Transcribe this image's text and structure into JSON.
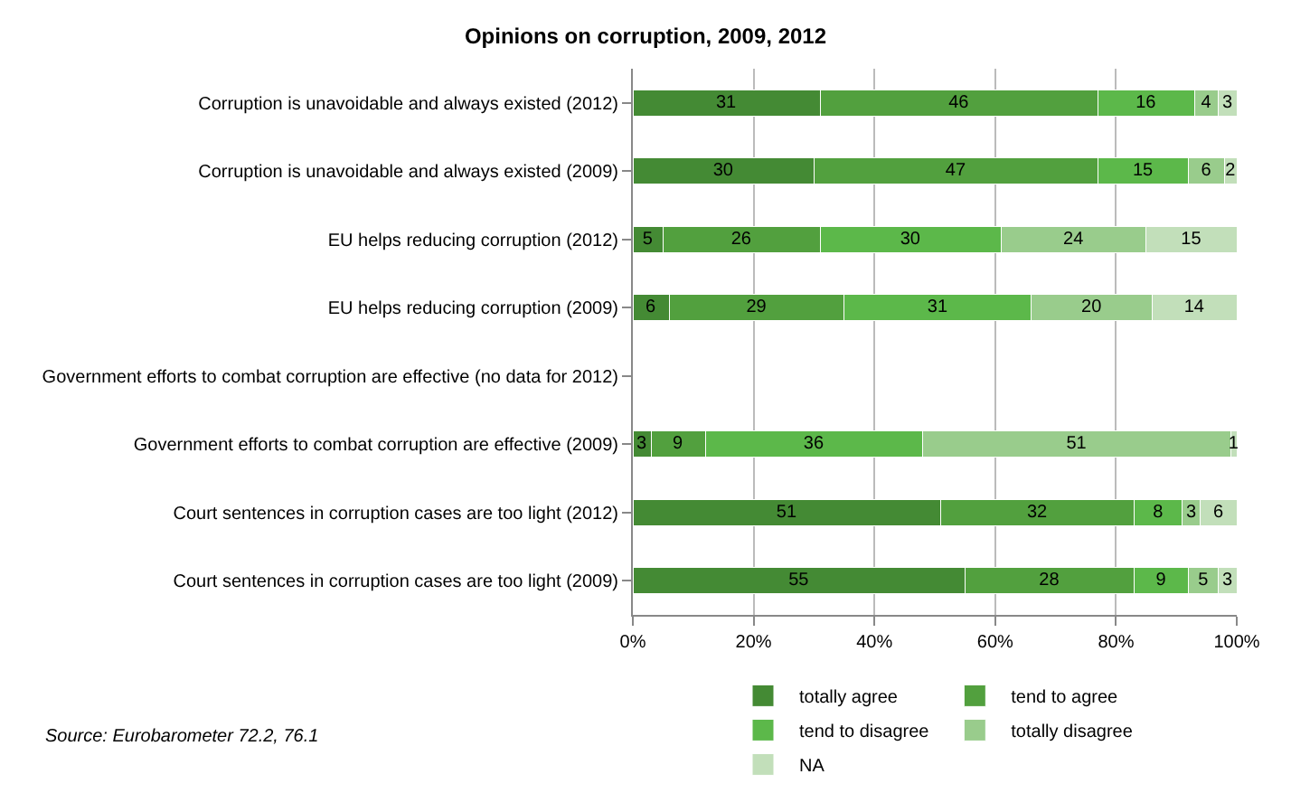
{
  "chart_data": {
    "type": "bar",
    "orientation": "horizontal",
    "stacked": true,
    "title": "Opinions on corruption, 2009, 2012",
    "categories": [
      "Corruption is unavoidable and always existed (2012)",
      "Corruption is unavoidable and always existed (2009)",
      "EU helps reducing corruption (2012)",
      "EU helps reducing corruption (2009)",
      "Government efforts to combat corruption are effective (no data for 2012)",
      "Government efforts to combat corruption are effective (2009)",
      "Court sentences in corruption cases are too light (2012)",
      "Court sentences in corruption cases are too light (2009)"
    ],
    "series": [
      {
        "name": "totally agree",
        "color": "#448a34",
        "values": [
          31,
          30,
          5,
          6,
          null,
          3,
          51,
          55
        ]
      },
      {
        "name": "tend to agree",
        "color": "#52a03e",
        "values": [
          46,
          47,
          26,
          29,
          null,
          9,
          32,
          28
        ]
      },
      {
        "name": "tend to disagree",
        "color": "#5cb84a",
        "values": [
          16,
          15,
          30,
          31,
          null,
          36,
          8,
          9
        ]
      },
      {
        "name": "totally disagree",
        "color": "#99cc8c",
        "values": [
          4,
          6,
          24,
          20,
          null,
          51,
          3,
          5
        ]
      },
      {
        "name": "NA",
        "color": "#c2dfba",
        "values": [
          3,
          2,
          15,
          14,
          null,
          1,
          6,
          3
        ]
      }
    ],
    "xlim": [
      0,
      100
    ],
    "xticks": [
      {
        "value": 0,
        "label": "0%"
      },
      {
        "value": 20,
        "label": "20%"
      },
      {
        "value": 40,
        "label": "40%"
      },
      {
        "value": 60,
        "label": "60%"
      },
      {
        "value": 80,
        "label": "80%"
      },
      {
        "value": 100,
        "label": "100%"
      }
    ],
    "grid": "x",
    "legend": "bottom",
    "data_labels": true,
    "annotations": [
      "Source: Eurobarometer 72.2, 76.1"
    ]
  }
}
